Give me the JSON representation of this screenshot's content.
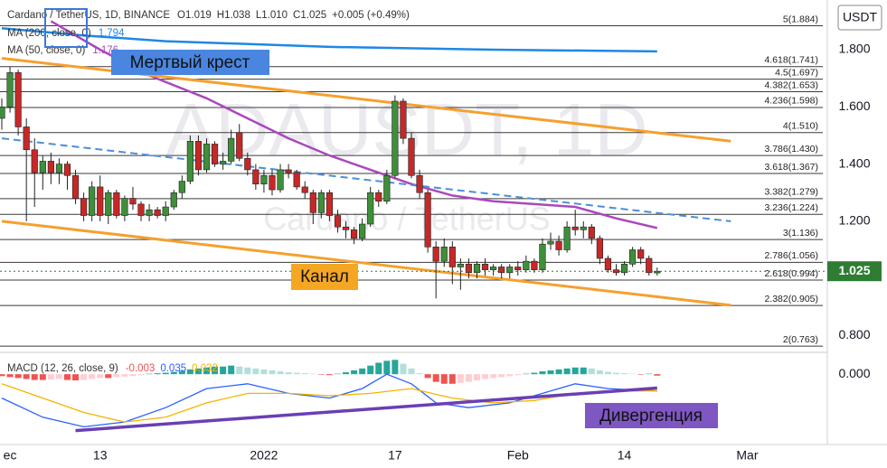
{
  "chart_data": {
    "type": "candlestick",
    "header": {
      "symbol": "Cardano / TetherUS, 1D, BINANCE",
      "o": "O1.019",
      "h": "H1.038",
      "l": "L1.010",
      "c": "C1.025",
      "change": "+0.005 (+0.49%)",
      "ma200_label": "MA (200, close, 0)",
      "ma200_value": "1.794",
      "ma50_label": "MA (50, close, 0)",
      "ma50_value": "1.176",
      "macd_label": "MACD (12, 26, close, 9)",
      "macd_v1": "-0.003",
      "macd_v2": "0.035",
      "macd_v3": "0.032"
    },
    "watermark": {
      "big": "ADAUSDT, 1D",
      "small": "Cardano / TetherUS"
    },
    "currency": "USDT",
    "annotations": {
      "dead_cross": "Мертвый крест",
      "channel": "Канал",
      "divergence": "Дивергенция"
    },
    "last_price": {
      "value": 1.025,
      "label": "1.025",
      "color": "#2e7d32"
    },
    "up_color": "#3f8f3a",
    "down_color": "#c62828",
    "ylim": [
      0.757,
      1.974
    ],
    "yticks": [
      {
        "value": 1.8,
        "label": "1.800"
      },
      {
        "value": 1.6,
        "label": "1.600"
      },
      {
        "value": 1.4,
        "label": "1.400"
      },
      {
        "value": 1.2,
        "label": "1.200"
      },
      {
        "value": 0.8,
        "label": "0.800"
      }
    ],
    "xlim": [
      0,
      107
    ],
    "xticks": [
      {
        "value": 1,
        "label": "ec"
      },
      {
        "value": 12,
        "label": "13"
      },
      {
        "value": 32,
        "label": "2022"
      },
      {
        "value": 48,
        "label": "17"
      },
      {
        "value": 63,
        "label": "Feb"
      },
      {
        "value": 76,
        "label": "14"
      },
      {
        "value": 91,
        "label": "Mar"
      }
    ],
    "fib_levels": [
      {
        "value": 1.884,
        "label": "5(1.884)"
      },
      {
        "value": 1.741,
        "label": "4.618(1.741)"
      },
      {
        "value": 1.697,
        "label": "4.5(1.697)"
      },
      {
        "value": 1.653,
        "label": "4.382(1.653)"
      },
      {
        "value": 1.598,
        "label": "4.236(1.598)"
      },
      {
        "value": 1.51,
        "label": "4(1.510)"
      },
      {
        "value": 1.43,
        "label": "3.786(1.430)"
      },
      {
        "value": 1.367,
        "label": "3.618(1.367)"
      },
      {
        "value": 1.279,
        "label": "3.382(1.279)"
      },
      {
        "value": 1.224,
        "label": "3.236(1.224)"
      },
      {
        "value": 1.136,
        "label": "3(1.136)"
      },
      {
        "value": 1.056,
        "label": "2.786(1.056)"
      },
      {
        "value": 0.994,
        "label": "2.618(0.994)"
      },
      {
        "value": 0.905,
        "label": "2.382(0.905)"
      },
      {
        "value": 0.763,
        "label": "2(0.763)"
      }
    ],
    "ohlc": [
      [
        1.56,
        1.63,
        1.52,
        1.6
      ],
      [
        1.6,
        1.74,
        1.58,
        1.72
      ],
      [
        1.72,
        1.73,
        1.5,
        1.53
      ],
      [
        1.53,
        1.56,
        1.2,
        1.45
      ],
      [
        1.45,
        1.49,
        1.25,
        1.37
      ],
      [
        1.37,
        1.43,
        1.31,
        1.41
      ],
      [
        1.41,
        1.44,
        1.33,
        1.37
      ],
      [
        1.37,
        1.42,
        1.33,
        1.4
      ],
      [
        1.4,
        1.41,
        1.31,
        1.36
      ],
      [
        1.36,
        1.38,
        1.26,
        1.28
      ],
      [
        1.28,
        1.3,
        1.2,
        1.22
      ],
      [
        1.22,
        1.34,
        1.2,
        1.32
      ],
      [
        1.32,
        1.36,
        1.2,
        1.22
      ],
      [
        1.22,
        1.31,
        1.19,
        1.3
      ],
      [
        1.3,
        1.31,
        1.21,
        1.22
      ],
      [
        1.22,
        1.29,
        1.2,
        1.28
      ],
      [
        1.28,
        1.32,
        1.24,
        1.26
      ],
      [
        1.26,
        1.27,
        1.2,
        1.22
      ],
      [
        1.22,
        1.26,
        1.2,
        1.24
      ],
      [
        1.24,
        1.25,
        1.21,
        1.22
      ],
      [
        1.22,
        1.27,
        1.2,
        1.25
      ],
      [
        1.25,
        1.31,
        1.24,
        1.3
      ],
      [
        1.3,
        1.36,
        1.28,
        1.34
      ],
      [
        1.34,
        1.5,
        1.33,
        1.48
      ],
      [
        1.48,
        1.5,
        1.36,
        1.38
      ],
      [
        1.38,
        1.49,
        1.37,
        1.47
      ],
      [
        1.47,
        1.48,
        1.39,
        1.4
      ],
      [
        1.4,
        1.44,
        1.38,
        1.41
      ],
      [
        1.41,
        1.52,
        1.4,
        1.49
      ],
      [
        1.51,
        1.54,
        1.41,
        1.42
      ],
      [
        1.42,
        1.44,
        1.36,
        1.38
      ],
      [
        1.38,
        1.4,
        1.31,
        1.33
      ],
      [
        1.33,
        1.38,
        1.3,
        1.36
      ],
      [
        1.36,
        1.38,
        1.29,
        1.31
      ],
      [
        1.31,
        1.4,
        1.3,
        1.38
      ],
      [
        1.38,
        1.4,
        1.35,
        1.37
      ],
      [
        1.37,
        1.38,
        1.31,
        1.32
      ],
      [
        1.32,
        1.34,
        1.28,
        1.3
      ],
      [
        1.3,
        1.31,
        1.19,
        1.23
      ],
      [
        1.23,
        1.31,
        1.21,
        1.3
      ],
      [
        1.3,
        1.31,
        1.2,
        1.22
      ],
      [
        1.22,
        1.24,
        1.16,
        1.18
      ],
      [
        1.18,
        1.2,
        1.14,
        1.17
      ],
      [
        1.17,
        1.18,
        1.12,
        1.14
      ],
      [
        1.14,
        1.21,
        1.13,
        1.19
      ],
      [
        1.19,
        1.32,
        1.18,
        1.3
      ],
      [
        1.3,
        1.31,
        1.25,
        1.27
      ],
      [
        1.27,
        1.38,
        1.26,
        1.36
      ],
      [
        1.36,
        1.64,
        1.35,
        1.62
      ],
      [
        1.62,
        1.63,
        1.47,
        1.49
      ],
      [
        1.49,
        1.51,
        1.35,
        1.36
      ],
      [
        1.36,
        1.38,
        1.28,
        1.3
      ],
      [
        1.3,
        1.31,
        1.09,
        1.11
      ],
      [
        1.11,
        1.13,
        0.93,
        1.06
      ],
      [
        1.06,
        1.14,
        1.04,
        1.11
      ],
      [
        1.11,
        1.13,
        0.98,
        1.04
      ],
      [
        1.04,
        1.07,
        0.96,
        1.05
      ],
      [
        1.05,
        1.07,
        1.0,
        1.02
      ],
      [
        1.02,
        1.06,
        1.0,
        1.05
      ],
      [
        1.05,
        1.07,
        1.01,
        1.03
      ],
      [
        1.03,
        1.05,
        1.01,
        1.04
      ],
      [
        1.04,
        1.05,
        1.0,
        1.02
      ],
      [
        1.02,
        1.05,
        1.0,
        1.04
      ],
      [
        1.04,
        1.06,
        1.01,
        1.03
      ],
      [
        1.03,
        1.08,
        1.02,
        1.06
      ],
      [
        1.06,
        1.07,
        1.02,
        1.03
      ],
      [
        1.03,
        1.14,
        1.02,
        1.12
      ],
      [
        1.12,
        1.16,
        1.1,
        1.13
      ],
      [
        1.13,
        1.15,
        1.08,
        1.1
      ],
      [
        1.1,
        1.2,
        1.09,
        1.18
      ],
      [
        1.18,
        1.24,
        1.15,
        1.17
      ],
      [
        1.17,
        1.2,
        1.14,
        1.18
      ],
      [
        1.18,
        1.19,
        1.12,
        1.14
      ],
      [
        1.14,
        1.15,
        1.05,
        1.07
      ],
      [
        1.07,
        1.08,
        1.02,
        1.03
      ],
      [
        1.03,
        1.05,
        1.01,
        1.02
      ],
      [
        1.02,
        1.06,
        1.01,
        1.05
      ],
      [
        1.05,
        1.11,
        1.04,
        1.1
      ],
      [
        1.1,
        1.11,
        1.05,
        1.07
      ],
      [
        1.07,
        1.08,
        1.01,
        1.02
      ],
      [
        1.019,
        1.038,
        1.01,
        1.025
      ]
    ],
    "ma200": {
      "color": "#1e88e5",
      "x": [
        0,
        10,
        20,
        40,
        60,
        80
      ],
      "values": [
        1.875,
        1.85,
        1.83,
        1.81,
        1.8,
        1.794
      ]
    },
    "ma50": {
      "color": "#ab47bc",
      "x": [
        6,
        12,
        18,
        25,
        30,
        35,
        40,
        45,
        50,
        55,
        60,
        65,
        70,
        75,
        80
      ],
      "values": [
        1.9,
        1.8,
        1.71,
        1.63,
        1.56,
        1.49,
        1.43,
        1.38,
        1.33,
        1.29,
        1.27,
        1.26,
        1.25,
        1.21,
        1.176
      ]
    },
    "channel_top": {
      "color": "#f5a030",
      "x": [
        0,
        89
      ],
      "values": [
        1.77,
        1.48
      ]
    },
    "channel_bottom": {
      "color": "#f5a030",
      "x": [
        0,
        89
      ],
      "values": [
        1.2,
        0.906
      ]
    },
    "trend_dashed": {
      "color": "#4a8fd9",
      "x": [
        0,
        89
      ],
      "values": [
        1.49,
        1.2
      ]
    },
    "macd": {
      "ylim": [
        -0.147,
        0.04
      ],
      "yticks": [
        {
          "value": 0,
          "label": "0.000"
        }
      ],
      "histogram": [
        -0.004,
        -0.006,
        -0.008,
        -0.01,
        -0.012,
        -0.012,
        -0.011,
        -0.01,
        -0.012,
        -0.013,
        -0.012,
        -0.01,
        -0.008,
        -0.008,
        -0.006,
        -0.005,
        -0.004,
        -0.002,
        0.001,
        0.002,
        0.003,
        0.005,
        0.007,
        0.01,
        0.012,
        0.014,
        0.016,
        0.016,
        0.018,
        0.016,
        0.014,
        0.012,
        0.01,
        0.008,
        0.006,
        0.004,
        0.003,
        0.002,
        0.001,
        -0.001,
        -0.002,
        0.001,
        0.004,
        0.008,
        0.012,
        0.018,
        0.024,
        0.028,
        0.03,
        0.022,
        0.012,
        0.002,
        -0.008,
        -0.016,
        -0.02,
        -0.02,
        -0.018,
        -0.016,
        -0.013,
        -0.01,
        -0.008,
        -0.006,
        -0.004,
        -0.002,
        0.001,
        0.003,
        0.006,
        0.008,
        0.01,
        0.012,
        0.014,
        0.014,
        0.012,
        0.008,
        0.005,
        0.003,
        0.002,
        0.001,
        -0.001,
        0.001,
        -0.003
      ],
      "macd_line": {
        "color": "#2962ff",
        "x": [
          0,
          5,
          10,
          15,
          20,
          25,
          30,
          35,
          40,
          44,
          47,
          50,
          53,
          57,
          62,
          66,
          70,
          74,
          80
        ],
        "values": [
          -0.05,
          -0.09,
          -0.11,
          -0.1,
          -0.07,
          -0.03,
          -0.02,
          -0.04,
          -0.05,
          -0.03,
          0.0,
          -0.02,
          -0.06,
          -0.07,
          -0.06,
          -0.04,
          -0.02,
          -0.03,
          -0.035
        ]
      },
      "signal_line": {
        "color": "#f5b400",
        "x": [
          0,
          5,
          10,
          15,
          20,
          25,
          30,
          35,
          40,
          45,
          50,
          55,
          60,
          65,
          70,
          75,
          80
        ],
        "values": [
          -0.02,
          -0.05,
          -0.08,
          -0.1,
          -0.09,
          -0.06,
          -0.04,
          -0.04,
          -0.045,
          -0.04,
          -0.03,
          -0.05,
          -0.06,
          -0.055,
          -0.04,
          -0.035,
          -0.035
        ]
      },
      "divergence_line": {
        "color": "#6a3fb5",
        "x": [
          9,
          80
        ],
        "values": [
          -0.118,
          -0.029
        ]
      }
    }
  }
}
